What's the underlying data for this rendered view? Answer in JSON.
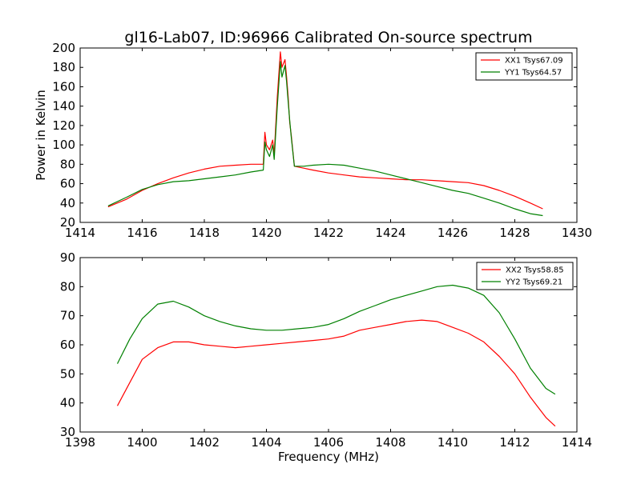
{
  "title": "gl16-Lab07, ID:96966 Calibrated On-source spectrum",
  "chart_data": [
    {
      "type": "line",
      "ylabel": "Power in Kelvin",
      "xlabel": "",
      "xlim": [
        1414,
        1430
      ],
      "ylim": [
        20,
        200
      ],
      "xticks": [
        1414,
        1416,
        1418,
        1420,
        1422,
        1424,
        1426,
        1428,
        1430
      ],
      "yticks": [
        20,
        40,
        60,
        80,
        100,
        120,
        140,
        160,
        180,
        200
      ],
      "grid": false,
      "legend_position": "upper right",
      "series": [
        {
          "name": "XX1 Tsys67.09",
          "color": "#ff0000",
          "x": [
            1414.9,
            1415.5,
            1416,
            1416.5,
            1417,
            1417.5,
            1418,
            1418.5,
            1419,
            1419.5,
            1419.9,
            1419.95,
            1420.0,
            1420.1,
            1420.2,
            1420.25,
            1420.35,
            1420.45,
            1420.5,
            1420.6,
            1420.65,
            1420.7,
            1420.75,
            1420.8,
            1420.9,
            1421.2,
            1421.5,
            1422,
            1422.5,
            1423,
            1423.5,
            1424,
            1424.5,
            1425,
            1425.5,
            1426,
            1426.5,
            1427,
            1427.5,
            1428,
            1428.5,
            1428.9
          ],
          "y": [
            36,
            44,
            53,
            60,
            66,
            71,
            75,
            78,
            79,
            80,
            80,
            113,
            100,
            95,
            105,
            90,
            150,
            196,
            180,
            188,
            170,
            150,
            123,
            110,
            78,
            76,
            74,
            71,
            69,
            67,
            66,
            65,
            64,
            64,
            63,
            62,
            61,
            58,
            53,
            47,
            40,
            34
          ]
        },
        {
          "name": "YY1 Tsys64.57",
          "color": "#008000",
          "x": [
            1414.9,
            1415.5,
            1416,
            1416.5,
            1417,
            1417.5,
            1418,
            1418.5,
            1419,
            1419.5,
            1419.9,
            1419.95,
            1420.0,
            1420.1,
            1420.2,
            1420.25,
            1420.35,
            1420.45,
            1420.5,
            1420.6,
            1420.65,
            1420.7,
            1420.75,
            1420.8,
            1420.9,
            1421.2,
            1421.5,
            1422,
            1422.5,
            1423,
            1423.5,
            1424,
            1424.5,
            1425,
            1425.5,
            1426,
            1426.5,
            1427,
            1427.5,
            1428,
            1428.5,
            1428.9
          ],
          "y": [
            37,
            46,
            54,
            59,
            62,
            63,
            65,
            67,
            69,
            72,
            74,
            103,
            95,
            88,
            100,
            85,
            140,
            186,
            170,
            182,
            165,
            145,
            125,
            108,
            78,
            78,
            79,
            80,
            79,
            76,
            73,
            69,
            65,
            61,
            57,
            53,
            50,
            45,
            40,
            34,
            29,
            27
          ]
        }
      ]
    },
    {
      "type": "line",
      "ylabel": "",
      "xlabel": "Frequency (MHz)",
      "xlim": [
        1398,
        1414
      ],
      "ylim": [
        30,
        90
      ],
      "xticks": [
        1398,
        1400,
        1402,
        1404,
        1406,
        1408,
        1410,
        1412,
        1414
      ],
      "yticks": [
        30,
        40,
        50,
        60,
        70,
        80,
        90
      ],
      "grid": false,
      "legend_position": "upper right",
      "series": [
        {
          "name": "XX2 Tsys58.85",
          "color": "#ff0000",
          "x": [
            1399.2,
            1399.6,
            1400,
            1400.5,
            1401,
            1401.5,
            1402,
            1402.5,
            1403,
            1403.5,
            1404,
            1404.5,
            1405,
            1405.5,
            1406,
            1406.5,
            1407,
            1407.5,
            1408,
            1408.5,
            1409,
            1409.5,
            1410,
            1410.5,
            1411,
            1411.5,
            1412,
            1412.5,
            1413,
            1413.3
          ],
          "y": [
            39,
            47,
            55,
            59,
            61,
            61,
            60,
            59.5,
            59,
            59.5,
            60,
            60.5,
            61,
            61.5,
            62,
            63,
            65,
            66,
            67,
            68,
            68.5,
            68,
            66,
            64,
            61,
            56,
            50,
            42,
            35,
            32
          ]
        },
        {
          "name": "YY2 Tsys69.21",
          "color": "#008000",
          "x": [
            1399.2,
            1399.6,
            1400,
            1400.5,
            1401,
            1401.5,
            1402,
            1402.5,
            1403,
            1403.5,
            1404,
            1404.5,
            1405,
            1405.5,
            1406,
            1406.5,
            1407,
            1407.5,
            1408,
            1408.5,
            1409,
            1409.5,
            1410,
            1410.5,
            1411,
            1411.5,
            1412,
            1412.5,
            1413,
            1413.3
          ],
          "y": [
            53.5,
            62,
            69,
            74,
            75,
            73,
            70,
            68,
            66.5,
            65.5,
            65,
            65,
            65.5,
            66,
            67,
            69,
            71.5,
            73.5,
            75.5,
            77,
            78.5,
            80,
            80.5,
            79.5,
            77,
            71,
            62,
            52,
            45,
            43
          ]
        }
      ]
    }
  ]
}
